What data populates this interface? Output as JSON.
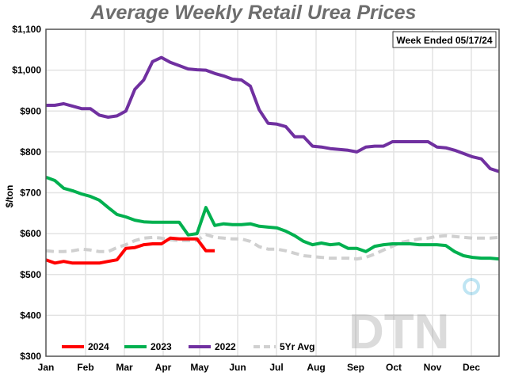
{
  "chart_data": {
    "type": "line",
    "title": "Average Weekly Retail Urea Prices",
    "annotation": "Week Ended 05/17/24",
    "ylabel": "$/ton",
    "xlabel": "",
    "ylim": [
      300,
      1100
    ],
    "y_ticks": [
      "$300",
      "$400",
      "$500",
      "$600",
      "$700",
      "$800",
      "$900",
      "$1,000",
      "$1,100"
    ],
    "x_ticks": [
      "Jan",
      "Feb",
      "Mar",
      "Apr",
      "May",
      "Jun",
      "Jul",
      "Aug",
      "Sep",
      "Oct",
      "Nov",
      "Dec"
    ],
    "x_unit": "week of year",
    "grid": true,
    "legend_placement": "bottom-left",
    "series": [
      {
        "name": "2024",
        "color": "#ff0000",
        "dashed": false,
        "values": [
          536,
          528,
          532,
          528,
          528,
          528,
          528,
          532,
          536,
          564,
          566,
          573,
          575,
          575,
          589,
          587,
          587,
          587,
          558,
          558
        ]
      },
      {
        "name": "2023",
        "color": "#00b04f",
        "dashed": false,
        "values": [
          738,
          730,
          711,
          705,
          697,
          691,
          682,
          664,
          647,
          641,
          633,
          629,
          628,
          628,
          628,
          628,
          597,
          600,
          664,
          620,
          624,
          622,
          622,
          624,
          618,
          616,
          614,
          606,
          595,
          581,
          573,
          577,
          573,
          575,
          564,
          564,
          556,
          569,
          573,
          575,
          575,
          575,
          573,
          573,
          573,
          571,
          556,
          546,
          542,
          540,
          540,
          538
        ]
      },
      {
        "name": "2022",
        "color": "#7030a0",
        "dashed": false,
        "values": [
          914,
          914,
          918,
          912,
          906,
          906,
          890,
          885,
          888,
          900,
          953,
          976,
          1021,
          1031,
          1019,
          1011,
          1003,
          1001,
          1000,
          992,
          986,
          978,
          976,
          961,
          903,
          870,
          868,
          862,
          837,
          837,
          814,
          812,
          808,
          806,
          804,
          800,
          812,
          814,
          814,
          825,
          825,
          825,
          825,
          825,
          812,
          810,
          804,
          796,
          788,
          783,
          759,
          752
        ]
      },
      {
        "name": "5Yr Avg",
        "color": "#d0d0d0",
        "dashed": true,
        "values": [
          558,
          556,
          556,
          558,
          562,
          560,
          556,
          556,
          566,
          573,
          583,
          589,
          591,
          589,
          585,
          583,
          583,
          583,
          598,
          591,
          589,
          587,
          587,
          581,
          568,
          562,
          562,
          558,
          552,
          546,
          544,
          542,
          540,
          540,
          540,
          538,
          542,
          550,
          560,
          569,
          579,
          583,
          587,
          589,
          593,
          595,
          593,
          591,
          589,
          589,
          589,
          591
        ]
      }
    ]
  },
  "watermark": "DTN"
}
